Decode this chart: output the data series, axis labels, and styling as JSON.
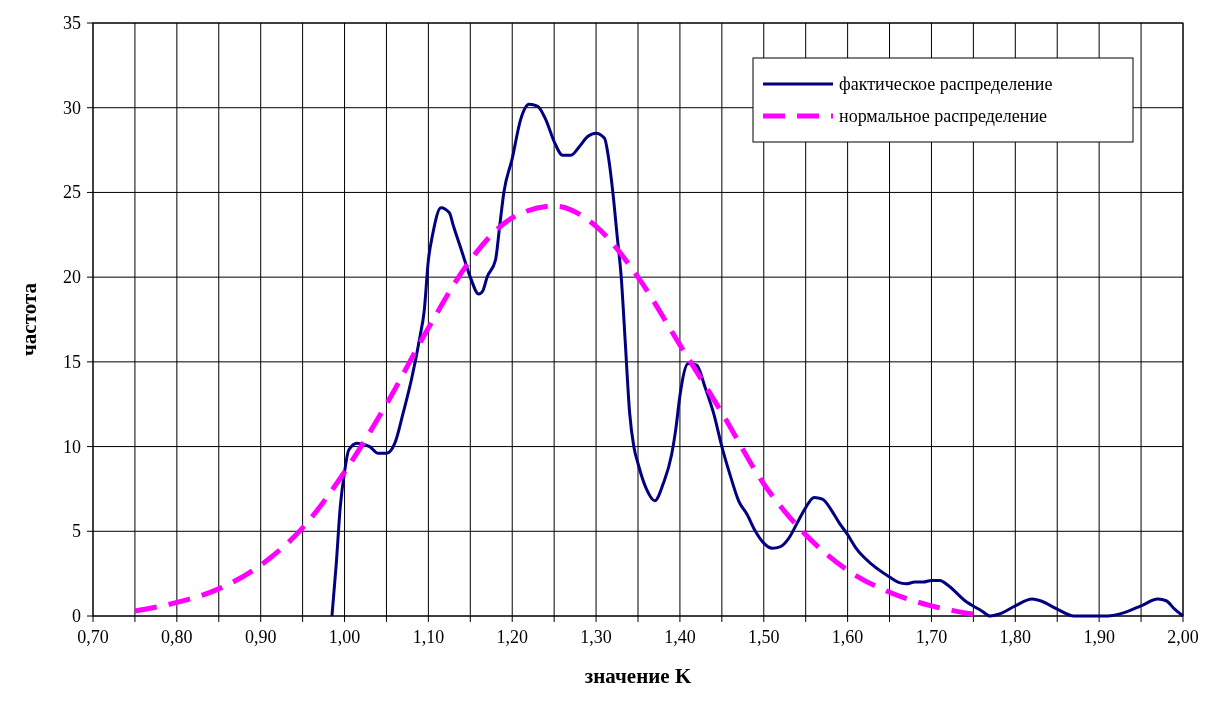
{
  "chart_data": {
    "type": "line",
    "xlabel": "значение K",
    "ylabel": "частота",
    "xlim": [
      0.7,
      2.0
    ],
    "ylim": [
      0,
      35
    ],
    "xticks": [
      {
        "value": 0.7,
        "label": "0,70"
      },
      {
        "value": 0.75,
        "label": null
      },
      {
        "value": 0.8,
        "label": "0,80"
      },
      {
        "value": 0.85,
        "label": null
      },
      {
        "value": 0.9,
        "label": "0,90"
      },
      {
        "value": 0.95,
        "label": null
      },
      {
        "value": 1.0,
        "label": "1,00"
      },
      {
        "value": 1.05,
        "label": null
      },
      {
        "value": 1.1,
        "label": "1,10"
      },
      {
        "value": 1.15,
        "label": null
      },
      {
        "value": 1.2,
        "label": "1,20"
      },
      {
        "value": 1.25,
        "label": null
      },
      {
        "value": 1.3,
        "label": "1,30"
      },
      {
        "value": 1.35,
        "label": null
      },
      {
        "value": 1.4,
        "label": "1,40"
      },
      {
        "value": 1.45,
        "label": null
      },
      {
        "value": 1.5,
        "label": "1,50"
      },
      {
        "value": 1.55,
        "label": null
      },
      {
        "value": 1.6,
        "label": "1,60"
      },
      {
        "value": 1.65,
        "label": null
      },
      {
        "value": 1.7,
        "label": "1,70"
      },
      {
        "value": 1.75,
        "label": null
      },
      {
        "value": 1.8,
        "label": "1,80"
      },
      {
        "value": 1.85,
        "label": null
      },
      {
        "value": 1.9,
        "label": "1,90"
      },
      {
        "value": 1.95,
        "label": null
      },
      {
        "value": 2.0,
        "label": "2,00"
      }
    ],
    "yticks": [
      0,
      5,
      10,
      15,
      20,
      25,
      30,
      35
    ],
    "grid": true,
    "legend": "top right",
    "marker": "none",
    "series": [
      {
        "name": "фактическое распределение",
        "color": "#000080",
        "line_style": "solid",
        "x": [
          0.985,
          0.99,
          0.995,
          1.0,
          1.005,
          1.015,
          1.03,
          1.04,
          1.05,
          1.06,
          1.07,
          1.08,
          1.09,
          1.095,
          1.1,
          1.105,
          1.115,
          1.125,
          1.13,
          1.14,
          1.15,
          1.16,
          1.165,
          1.17,
          1.18,
          1.185,
          1.19,
          1.2,
          1.21,
          1.22,
          1.23,
          1.24,
          1.25,
          1.26,
          1.27,
          1.28,
          1.29,
          1.3,
          1.31,
          1.315,
          1.32,
          1.325,
          1.33,
          1.335,
          1.34,
          1.345,
          1.35,
          1.36,
          1.37,
          1.38,
          1.39,
          1.395,
          1.4,
          1.41,
          1.42,
          1.43,
          1.44,
          1.45,
          1.46,
          1.47,
          1.48,
          1.49,
          1.5,
          1.51,
          1.52,
          1.53,
          1.54,
          1.55,
          1.56,
          1.57,
          1.58,
          1.59,
          1.6,
          1.61,
          1.63,
          1.65,
          1.66,
          1.67,
          1.68,
          1.69,
          1.7,
          1.71,
          1.72,
          1.74,
          1.76,
          1.77,
          1.78,
          1.8,
          1.82,
          1.83,
          1.85,
          1.87,
          1.91,
          1.93,
          1.95,
          1.97,
          1.98,
          1.99,
          2.0
        ],
        "values": [
          0,
          3,
          6.5,
          8.5,
          9.8,
          10.2,
          10,
          9.6,
          9.6,
          10.2,
          12,
          14,
          16.5,
          18,
          21,
          22.5,
          24.1,
          23.8,
          23,
          21.5,
          20,
          19,
          19.2,
          20,
          21,
          23,
          25,
          27,
          29.3,
          30.2,
          30.1,
          29.3,
          28,
          27.2,
          27.2,
          27.7,
          28.3,
          28.5,
          28.2,
          27,
          25,
          22.5,
          20,
          16,
          12,
          10,
          9,
          7.5,
          6.8,
          7.8,
          9.5,
          11,
          13,
          14.9,
          14.8,
          13.5,
          12,
          10,
          8.3,
          6.8,
          6,
          5,
          4.3,
          4,
          4.1,
          4.6,
          5.5,
          6.4,
          7,
          6.9,
          6.3,
          5.5,
          4.8,
          4,
          3,
          2.3,
          2,
          1.9,
          2,
          2,
          2.1,
          2.1,
          1.8,
          0.9,
          0.3,
          0,
          0.1,
          0.6,
          1,
          0.9,
          0.4,
          0,
          0,
          0.2,
          0.6,
          1,
          0.9,
          0.4,
          0
        ]
      },
      {
        "name": "нормальное распределение",
        "color": "#ff00ff",
        "line_style": "dashed",
        "x": [
          0.75,
          0.8,
          0.85,
          0.9,
          0.95,
          1.0,
          1.05,
          1.1,
          1.15,
          1.2,
          1.25,
          1.3,
          1.35,
          1.4,
          1.45,
          1.5,
          1.55,
          1.6,
          1.65,
          1.7,
          1.75
        ],
        "values": [
          0.3,
          0.8,
          1.6,
          3,
          5.2,
          8.5,
          12.5,
          17,
          21,
          23.5,
          24.2,
          23,
          20,
          16,
          12,
          7.8,
          4.8,
          2.7,
          1.4,
          0.6,
          0.1
        ]
      }
    ]
  }
}
